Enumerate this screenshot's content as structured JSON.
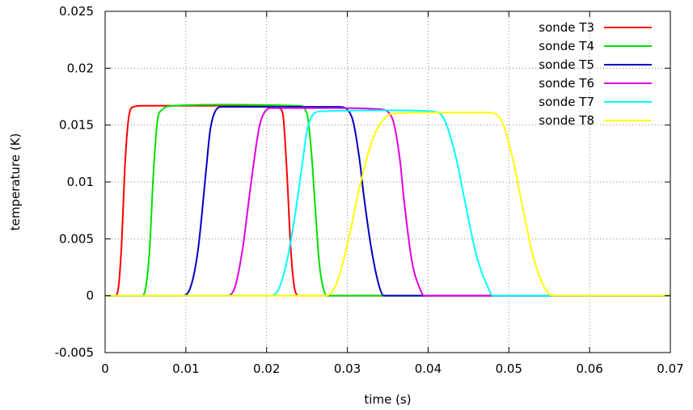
{
  "chart_data": {
    "type": "line",
    "title": "",
    "xlabel": "time (s)",
    "ylabel": "temperature (K)",
    "xlim": [
      0,
      0.07
    ],
    "ylim": [
      -0.005,
      0.025
    ],
    "grid": true,
    "legend_position": "top-right",
    "x_ticks": [
      "0",
      "0.01",
      "0.02",
      "0.03",
      "0.04",
      "0.05",
      "0.06",
      "0.07"
    ],
    "y_ticks": [
      "-0.005",
      "0",
      "0.005",
      "0.01",
      "0.015",
      "0.02",
      "0.025"
    ],
    "series": [
      {
        "name": "sonde T3",
        "color": "#ff0000",
        "x": [
          0,
          0.0012,
          0.0016,
          0.002,
          0.0025,
          0.003,
          0.0035,
          0.0045,
          0.01,
          0.02,
          0.0215,
          0.022,
          0.0225,
          0.023,
          0.0235,
          0.024,
          0.07
        ],
        "y": [
          0,
          0,
          0.0005,
          0.004,
          0.012,
          0.016,
          0.0166,
          0.0167,
          0.0167,
          0.0167,
          0.0165,
          0.016,
          0.011,
          0.004,
          0.0005,
          0,
          0
        ]
      },
      {
        "name": "sonde T4",
        "color": "#00e000",
        "x": [
          0,
          0.0045,
          0.005,
          0.0055,
          0.006,
          0.0065,
          0.007,
          0.0085,
          0.015,
          0.024,
          0.025,
          0.0255,
          0.026,
          0.0265,
          0.027,
          0.0275,
          0.07
        ],
        "y": [
          0,
          0,
          0.0006,
          0.004,
          0.011,
          0.0155,
          0.0163,
          0.0167,
          0.0168,
          0.0167,
          0.016,
          0.013,
          0.008,
          0.003,
          0.0007,
          0,
          0
        ]
      },
      {
        "name": "sonde T5",
        "color": "#0000c0",
        "x": [
          0,
          0.0095,
          0.0105,
          0.0115,
          0.0125,
          0.013,
          0.0135,
          0.0145,
          0.02,
          0.029,
          0.0305,
          0.0315,
          0.032,
          0.033,
          0.034,
          0.0345,
          0.07
        ],
        "y": [
          0,
          0,
          0.0006,
          0.004,
          0.011,
          0.0145,
          0.016,
          0.0166,
          0.0166,
          0.0166,
          0.0158,
          0.012,
          0.009,
          0.004,
          0.0007,
          0,
          0
        ]
      },
      {
        "name": "sonde T6",
        "color": "#e000e0",
        "x": [
          0,
          0.015,
          0.016,
          0.017,
          0.018,
          0.019,
          0.0195,
          0.0205,
          0.03,
          0.034,
          0.0355,
          0.0365,
          0.037,
          0.038,
          0.039,
          0.0395,
          0.07
        ],
        "y": [
          0,
          0,
          0.0006,
          0.004,
          0.0095,
          0.0145,
          0.0158,
          0.0165,
          0.0165,
          0.0164,
          0.0157,
          0.012,
          0.0085,
          0.003,
          0.0006,
          0,
          0
        ]
      },
      {
        "name": "sonde T7",
        "color": "#00ffff",
        "x": [
          0,
          0.0205,
          0.0215,
          0.0225,
          0.0235,
          0.0245,
          0.025,
          0.0265,
          0.035,
          0.0405,
          0.042,
          0.0435,
          0.0445,
          0.046,
          0.0475,
          0.048,
          0.07
        ],
        "y": [
          0,
          0,
          0.0006,
          0.003,
          0.007,
          0.012,
          0.0145,
          0.0162,
          0.0163,
          0.0162,
          0.0155,
          0.012,
          0.0085,
          0.0035,
          0.0006,
          0,
          0
        ]
      },
      {
        "name": "sonde T8",
        "color": "#ffff00",
        "x": [
          0,
          0.027,
          0.0285,
          0.03,
          0.0315,
          0.033,
          0.034,
          0.0355,
          0.04,
          0.0475,
          0.049,
          0.0505,
          0.0515,
          0.053,
          0.0545,
          0.0555,
          0.07
        ],
        "y": [
          0,
          0,
          0.0008,
          0.0045,
          0.0095,
          0.0135,
          0.015,
          0.016,
          0.0161,
          0.0161,
          0.0155,
          0.012,
          0.0085,
          0.0035,
          0.0006,
          0,
          0
        ]
      }
    ]
  }
}
